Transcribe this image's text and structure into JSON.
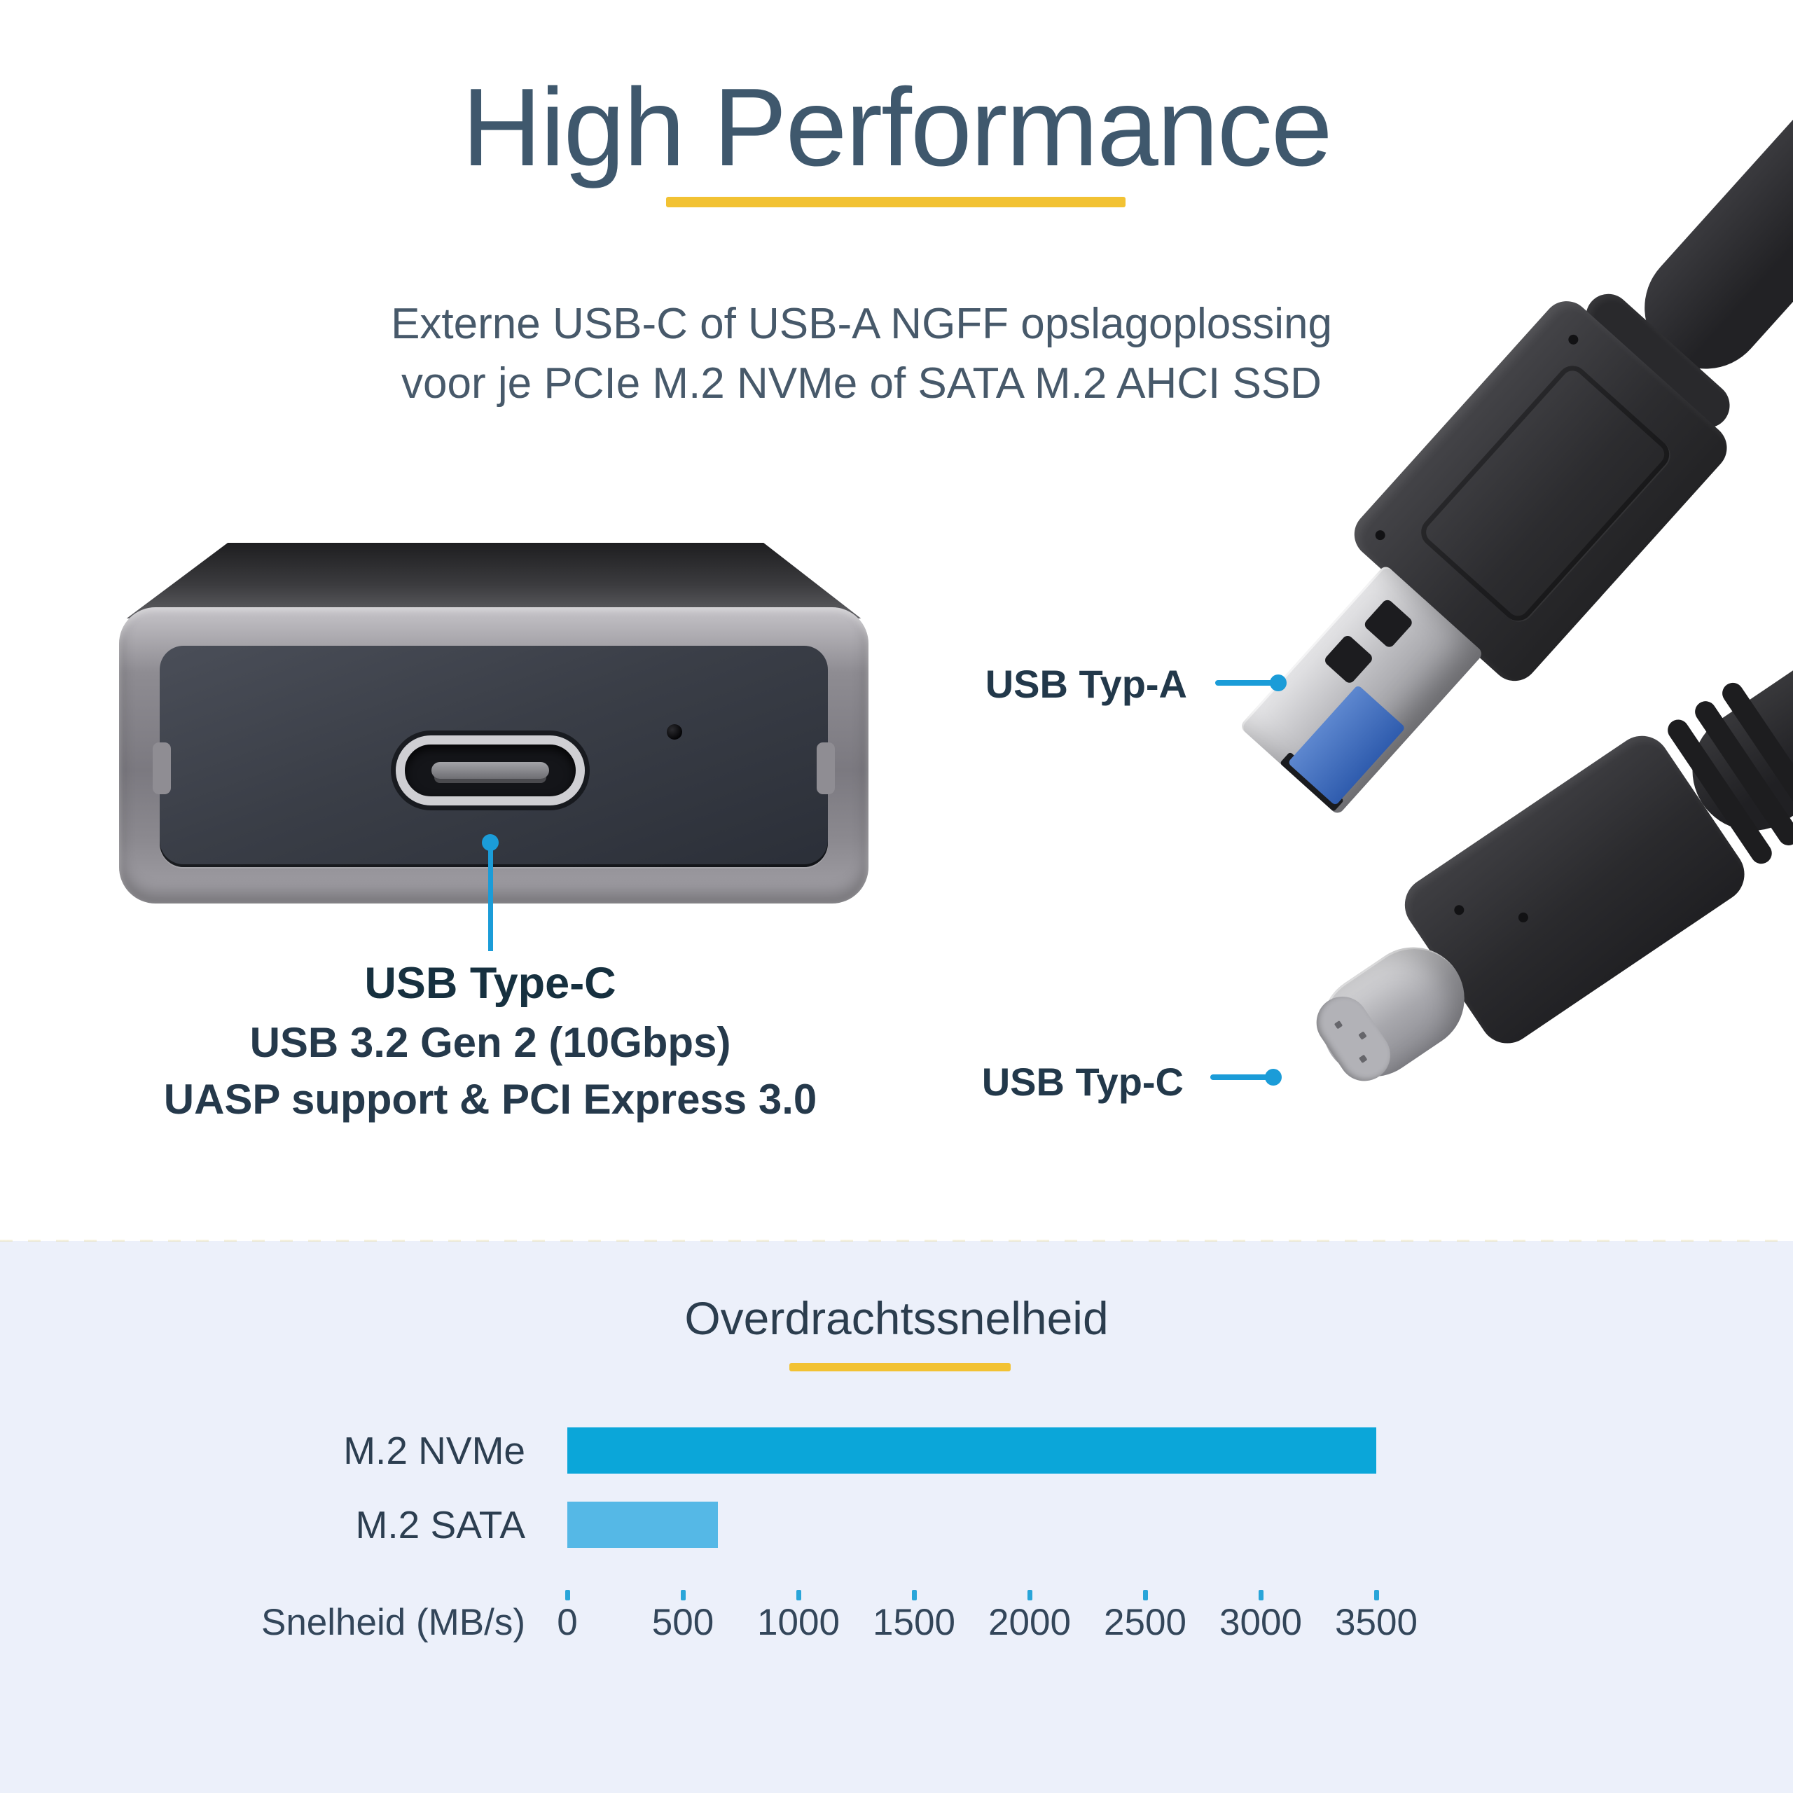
{
  "hero": {
    "title": "High Performance",
    "subtitle_line1": "Externe USB-C of USB-A NGFF opslagoplossing",
    "subtitle_line2": "voor je PCIe M.2 NVMe of SATA M.2 AHCI SSD"
  },
  "enclosure_caption": {
    "title": "USB Type-C",
    "line2": "USB 3.2 Gen 2 (10Gbps)",
    "line3": "UASP support & PCI Express 3.0"
  },
  "connector_labels": {
    "usb_a": "USB Typ-A",
    "usb_c": "USB Typ-C"
  },
  "colors": {
    "accent_cyan": "#1b9cd8",
    "accent_yellow": "#f2c233",
    "heading_text": "#3f586d",
    "body_text": "#25394b",
    "section_background": "#ecf0fa",
    "bar_nvme": "#0ba6d9",
    "bar_sata": "#55b8e6"
  },
  "chart_data": {
    "type": "bar",
    "orientation": "horizontal",
    "title": "Overdrachtssnelheid",
    "categories": [
      "M.2 NVMe",
      "M.2 SATA"
    ],
    "values": [
      3500,
      650
    ],
    "xlabel": "Snelheid (MB/s)",
    "xticks": [
      0,
      500,
      1000,
      1500,
      2000,
      2500,
      3000,
      3500
    ],
    "xlim": [
      0,
      3500
    ],
    "grid": false,
    "legend": false,
    "bar_colors": [
      "#0ba6d9",
      "#55b8e6"
    ]
  }
}
